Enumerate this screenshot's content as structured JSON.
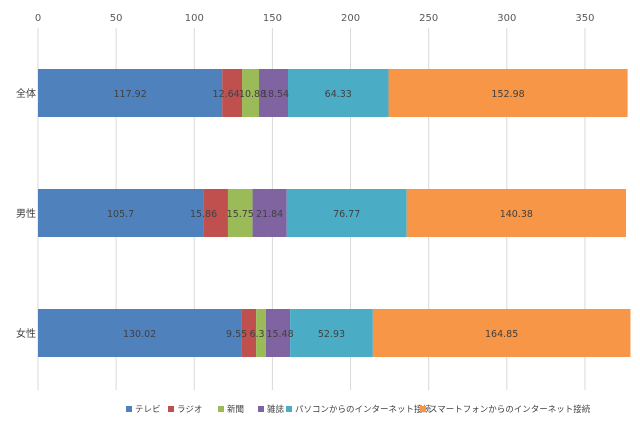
{
  "chart_data": {
    "type": "bar",
    "orientation": "horizontal",
    "stacked": true,
    "title": "",
    "xlabel": "",
    "ylabel": "",
    "xlim": [
      0,
      375
    ],
    "xticks": [
      0,
      50,
      100,
      150,
      200,
      250,
      300,
      350
    ],
    "x_axis_position": "top",
    "grid": true,
    "legend_position": "bottom",
    "categories": [
      "全体",
      "男性",
      "女性"
    ],
    "series": [
      {
        "name": "テレビ",
        "color": "#4f81bd",
        "values": [
          117.92,
          105.7,
          130.02
        ]
      },
      {
        "name": "ラジオ",
        "color": "#c0504d",
        "values": [
          12.64,
          15.86,
          9.55
        ]
      },
      {
        "name": "新聞",
        "color": "#9bbb59",
        "values": [
          10.88,
          15.75,
          6.3
        ]
      },
      {
        "name": "雑誌",
        "color": "#8064a2",
        "values": [
          18.54,
          21.84,
          15.48
        ]
      },
      {
        "name": "パソコンからのインターネット接続",
        "color": "#4bacc6",
        "values": [
          64.33,
          76.77,
          52.93
        ]
      },
      {
        "name": "スマートフォンからのインターネット接続",
        "color": "#f79646",
        "values": [
          152.98,
          140.38,
          164.85
        ]
      }
    ],
    "data_labels": [
      [
        "117.92",
        "12.64",
        "10.88",
        "18.54",
        "64.33",
        "152.98"
      ],
      [
        "105.7",
        "15.86",
        "15.75",
        "21.84",
        "76.77",
        "140.38"
      ],
      [
        "130.02",
        "9.55",
        "6.3",
        "15.48",
        "52.93",
        "164.85"
      ]
    ]
  }
}
